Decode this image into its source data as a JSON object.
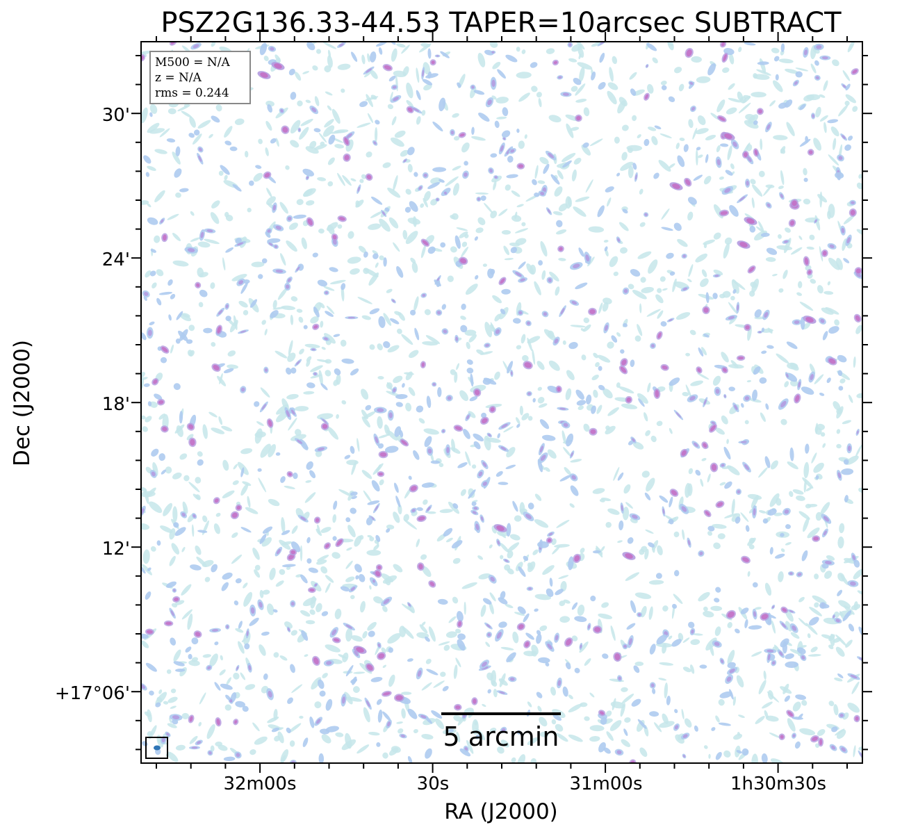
{
  "chart_data": {
    "type": "heatmap",
    "title": "PSZ2G136.33-44.53 TAPER=10arcsec SUBTRACT",
    "xlabel": "RA (J2000)",
    "ylabel": "Dec (J2000)",
    "x_ticks": [
      "32m00s",
      "30s",
      "31m00s",
      "1h30m30s"
    ],
    "y_ticks": [
      "30'",
      "24'",
      "18'",
      "12'",
      "+17°06'"
    ],
    "info_box": [
      "M500 = N/A",
      "z = N/A",
      "rms = 0.244"
    ],
    "scale_bar_label": "5 arcmin",
    "colors": {
      "faint": "#c6e6ea",
      "mid": "#aecbf0",
      "strong": "#b49be0",
      "peak": "#c46fc4",
      "beam": "#2e75b6"
    }
  }
}
